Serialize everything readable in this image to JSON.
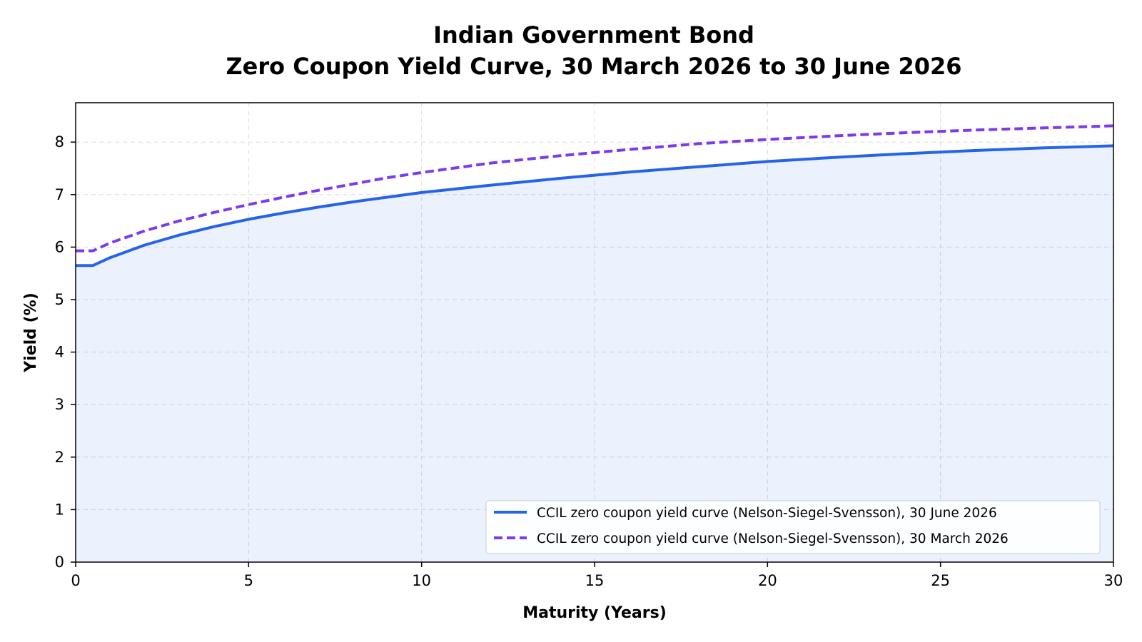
{
  "chart_data": {
    "type": "line",
    "title": "Indian Government Bond",
    "subtitle": "Zero Coupon Yield Curve, 30 March 2026 to 30 June 2026",
    "xlabel": "Maturity (Years)",
    "ylabel": "Yield (%)",
    "xlim": [
      0,
      30
    ],
    "ylim": [
      0,
      8.75
    ],
    "xticks": [
      0,
      5,
      10,
      15,
      20,
      25,
      30
    ],
    "yticks": [
      0,
      1,
      2,
      3,
      4,
      5,
      6,
      7,
      8
    ],
    "grid": true,
    "legend_position": "bottom-right",
    "series": [
      {
        "name": "CCIL zero coupon yield curve (Nelson-Siegel-Svensson), 30 June 2026",
        "style": "solid",
        "color": "#2563eb",
        "area_fill": true,
        "x": [
          0,
          0.5,
          1,
          2,
          3,
          4,
          5,
          6,
          7,
          8,
          9,
          10,
          12,
          14,
          16,
          18,
          20,
          22,
          24,
          26,
          28,
          30
        ],
        "y": [
          5.65,
          5.65,
          5.8,
          6.04,
          6.23,
          6.39,
          6.53,
          6.65,
          6.76,
          6.86,
          6.95,
          7.04,
          7.18,
          7.31,
          7.43,
          7.53,
          7.63,
          7.71,
          7.78,
          7.84,
          7.89,
          7.93
        ]
      },
      {
        "name": "CCIL zero coupon yield curve (Nelson-Siegel-Svensson), 30 March 2026",
        "style": "dashed",
        "color": "#7c3aed",
        "area_fill": false,
        "x": [
          0,
          0.5,
          1,
          2,
          3,
          4,
          5,
          6,
          7,
          8,
          9,
          10,
          12,
          14,
          16,
          18,
          20,
          22,
          24,
          26,
          28,
          30
        ],
        "y": [
          5.93,
          5.93,
          6.08,
          6.31,
          6.5,
          6.66,
          6.81,
          6.95,
          7.08,
          7.2,
          7.32,
          7.42,
          7.6,
          7.74,
          7.86,
          7.97,
          8.05,
          8.12,
          8.18,
          8.23,
          8.27,
          8.31
        ]
      }
    ]
  }
}
